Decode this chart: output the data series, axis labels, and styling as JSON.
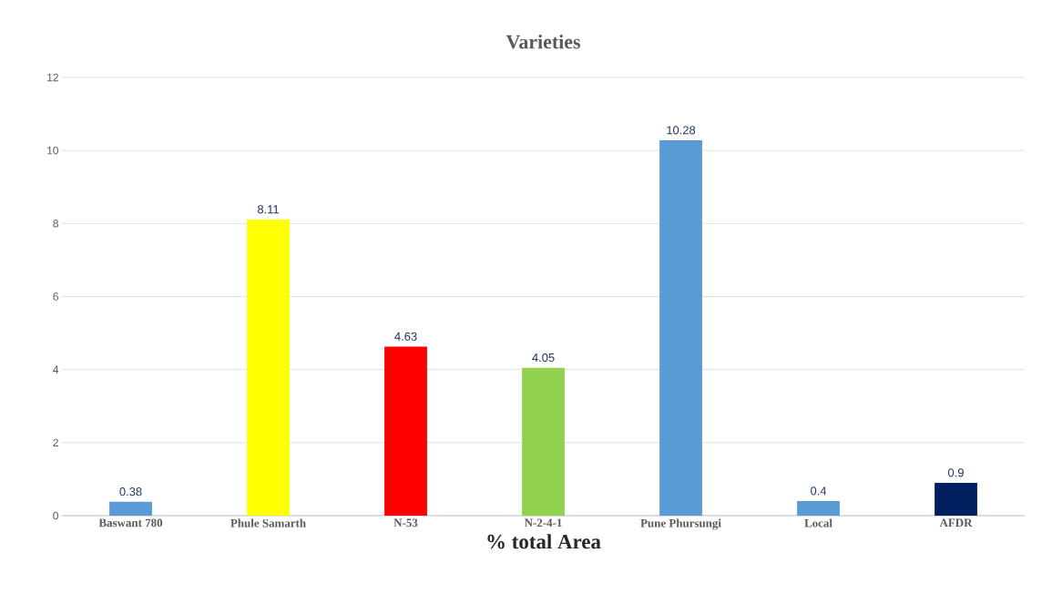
{
  "chart_data": {
    "type": "bar",
    "title": "Varieties",
    "xlabel": "% total Area",
    "categories": [
      "Baswant 780",
      "Phule Samarth",
      "N-53",
      "N-2-4-1",
      "Pune Phursungi",
      "Local",
      "AFDR"
    ],
    "values": [
      0.38,
      8.11,
      4.63,
      4.05,
      10.28,
      0.4,
      0.9
    ],
    "colors": [
      "#5b9bd5",
      "#ffff00",
      "#ff0000",
      "#92d050",
      "#5b9bd5",
      "#5b9bd5",
      "#002060"
    ],
    "ylim": [
      0,
      12
    ],
    "yticks": [
      0,
      2,
      4,
      6,
      8,
      10,
      12
    ],
    "grid": "y",
    "data_labels": true
  }
}
